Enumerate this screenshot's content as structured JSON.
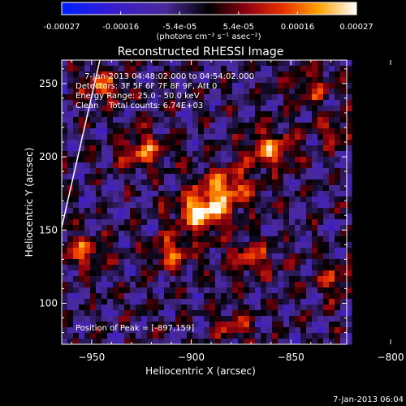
{
  "chart_data": {
    "type": "heatmap",
    "title": "Reconstructed RHESSI Image",
    "xlabel": "Heliocentric X (arcsec)",
    "ylabel": "Heliocentric Y (arcsec)",
    "xlim": [
      -965,
      -822
    ],
    "ylim": [
      72,
      266
    ],
    "x_ticks": [
      -950,
      -900,
      -850,
      -800
    ],
    "y_ticks": [
      100,
      150,
      200,
      250
    ],
    "colorbar": {
      "label": "(photons cm⁻² s⁻¹ asec⁻²)",
      "range": [
        -0.00027,
        0.00027
      ],
      "ticks": [
        "-0.00027",
        "-0.00016",
        "-5.4e-05",
        "5.4e-05",
        "0.00016",
        "0.00027"
      ]
    },
    "annotations": [
      "7-Jan-2013 04:48:02.000 to 04:54:02.000",
      "Detectors: 3F 5F 6F 7F 8F 9F, Att 0",
      "Energy Range: 25.0 - 50.0 keV",
      "Clean    Total counts: 6.74E+03"
    ],
    "peak_label": "Position of Peak = [-897,159]",
    "peak": [
      -897,
      159
    ],
    "sources": [
      {
        "x": -895,
        "y": 162,
        "amp": 1.0,
        "sigma": 9
      },
      {
        "x": -882,
        "y": 178,
        "amp": 0.75,
        "sigma": 10
      },
      {
        "x": -860,
        "y": 205,
        "amp": 0.75,
        "sigma": 9
      },
      {
        "x": -925,
        "y": 205,
        "amp": 0.65,
        "sigma": 9
      },
      {
        "x": -945,
        "y": 248,
        "amp": 0.6,
        "sigma": 8
      },
      {
        "x": -955,
        "y": 135,
        "amp": 0.6,
        "sigma": 8
      },
      {
        "x": -870,
        "y": 130,
        "amp": 0.55,
        "sigma": 9
      },
      {
        "x": -910,
        "y": 135,
        "amp": 0.6,
        "sigma": 8
      },
      {
        "x": -828,
        "y": 115,
        "amp": 0.5,
        "sigma": 8
      },
      {
        "x": -878,
        "y": 85,
        "amp": 0.5,
        "sigma": 7
      },
      {
        "x": -840,
        "y": 248,
        "amp": 0.45,
        "sigma": 9
      },
      {
        "x": -826,
        "y": 215,
        "amp": 0.45,
        "sigma": 7
      }
    ]
  },
  "timestamp": "7-Jan-2013 06:04"
}
